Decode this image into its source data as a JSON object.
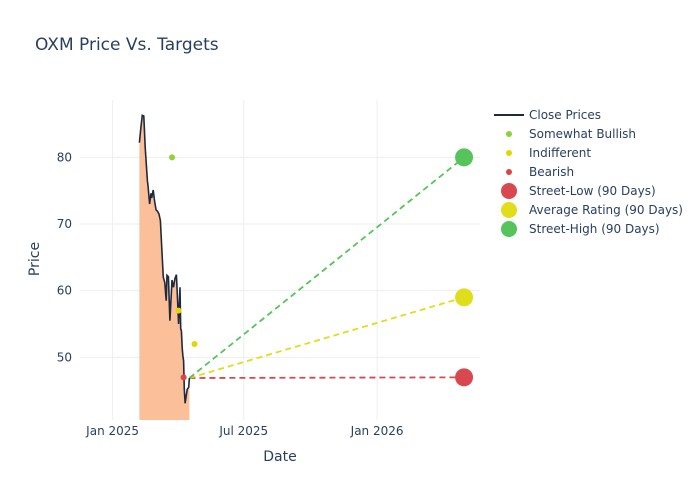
{
  "chart_data": {
    "type": "line",
    "title": "OXM Price Vs. Targets",
    "xlabel": "Date",
    "ylabel": "Price",
    "x_ticks": [
      {
        "label": "Jan 2025",
        "date": "2025-01-01"
      },
      {
        "label": "Jul 2025",
        "date": "2025-07-01"
      },
      {
        "label": "Jan 2026",
        "date": "2026-01-01"
      }
    ],
    "y_ticks": [
      50,
      60,
      70,
      80
    ],
    "xlim": [
      "2024-11-17",
      "2026-05-23"
    ],
    "ylim": [
      40.6,
      88.6
    ],
    "grid": true,
    "legend_position": "right",
    "close_prices": {
      "name": "Close Prices",
      "color": "#1f2a3c",
      "fill_color": "#fbbf9a",
      "points": [
        [
          "2025-02-07",
          82.2
        ],
        [
          "2025-02-09",
          84.5
        ],
        [
          "2025-02-11",
          86.3
        ],
        [
          "2025-02-13",
          86.2
        ],
        [
          "2025-02-15",
          81.5
        ],
        [
          "2025-02-18",
          76.5
        ],
        [
          "2025-02-19",
          75.6
        ],
        [
          "2025-02-21",
          73.0
        ],
        [
          "2025-02-23",
          74.6
        ],
        [
          "2025-02-24",
          73.9
        ],
        [
          "2025-02-26",
          75.1
        ],
        [
          "2025-02-28",
          73.4
        ],
        [
          "2025-03-02",
          72.1
        ],
        [
          "2025-03-04",
          71.9
        ],
        [
          "2025-03-06",
          71.5
        ],
        [
          "2025-03-08",
          70.5
        ],
        [
          "2025-03-10",
          66.0
        ],
        [
          "2025-03-12",
          62.0
        ],
        [
          "2025-03-14",
          61.2
        ],
        [
          "2025-03-16",
          58.5
        ],
        [
          "2025-03-17",
          62.3
        ],
        [
          "2025-03-19",
          62.1
        ],
        [
          "2025-03-21",
          55.5
        ],
        [
          "2025-03-23",
          59.5
        ],
        [
          "2025-03-24",
          61.6
        ],
        [
          "2025-03-26",
          60.5
        ],
        [
          "2025-03-28",
          61.8
        ],
        [
          "2025-03-30",
          62.4
        ],
        [
          "2025-03-31",
          60.2
        ],
        [
          "2025-04-02",
          55.0
        ],
        [
          "2025-04-04",
          60.5
        ],
        [
          "2025-04-05",
          54.3
        ],
        [
          "2025-04-06",
          54.0
        ],
        [
          "2025-04-07",
          51.4
        ],
        [
          "2025-04-08",
          50.2
        ],
        [
          "2025-04-09",
          49.5
        ],
        [
          "2025-04-10",
          45.2
        ],
        [
          "2025-04-11",
          43.1
        ],
        [
          "2025-04-14",
          45.2
        ],
        [
          "2025-04-16",
          45.5
        ],
        [
          "2025-04-17",
          46.9
        ]
      ]
    },
    "analyst_ratings": [
      {
        "name": "Somewhat Bullish",
        "color": "#8fd13a",
        "points": [
          [
            "2025-03-24",
            80
          ]
        ]
      },
      {
        "name": "Indifferent",
        "color": "#e3d600",
        "points": [
          [
            "2025-04-02",
            57
          ],
          [
            "2025-04-24",
            52
          ]
        ]
      },
      {
        "name": "Bearish",
        "color": "#dc4445",
        "points": [
          [
            "2025-04-09",
            47
          ]
        ]
      }
    ],
    "targets": [
      {
        "name": "Street-Low (90 Days)",
        "color": "#d8484e",
        "value": 47,
        "date": "2026-05-01",
        "from": [
          "2025-04-17",
          46.9
        ]
      },
      {
        "name": "Average Rating (90 Days)",
        "color": "#e0de1a",
        "value": 59,
        "date": "2026-05-01",
        "from": [
          "2025-04-17",
          46.9
        ]
      },
      {
        "name": "Street-High (90 Days)",
        "color": "#55c45a",
        "value": 80,
        "date": "2026-05-01",
        "from": [
          "2025-04-17",
          46.9
        ]
      }
    ]
  }
}
